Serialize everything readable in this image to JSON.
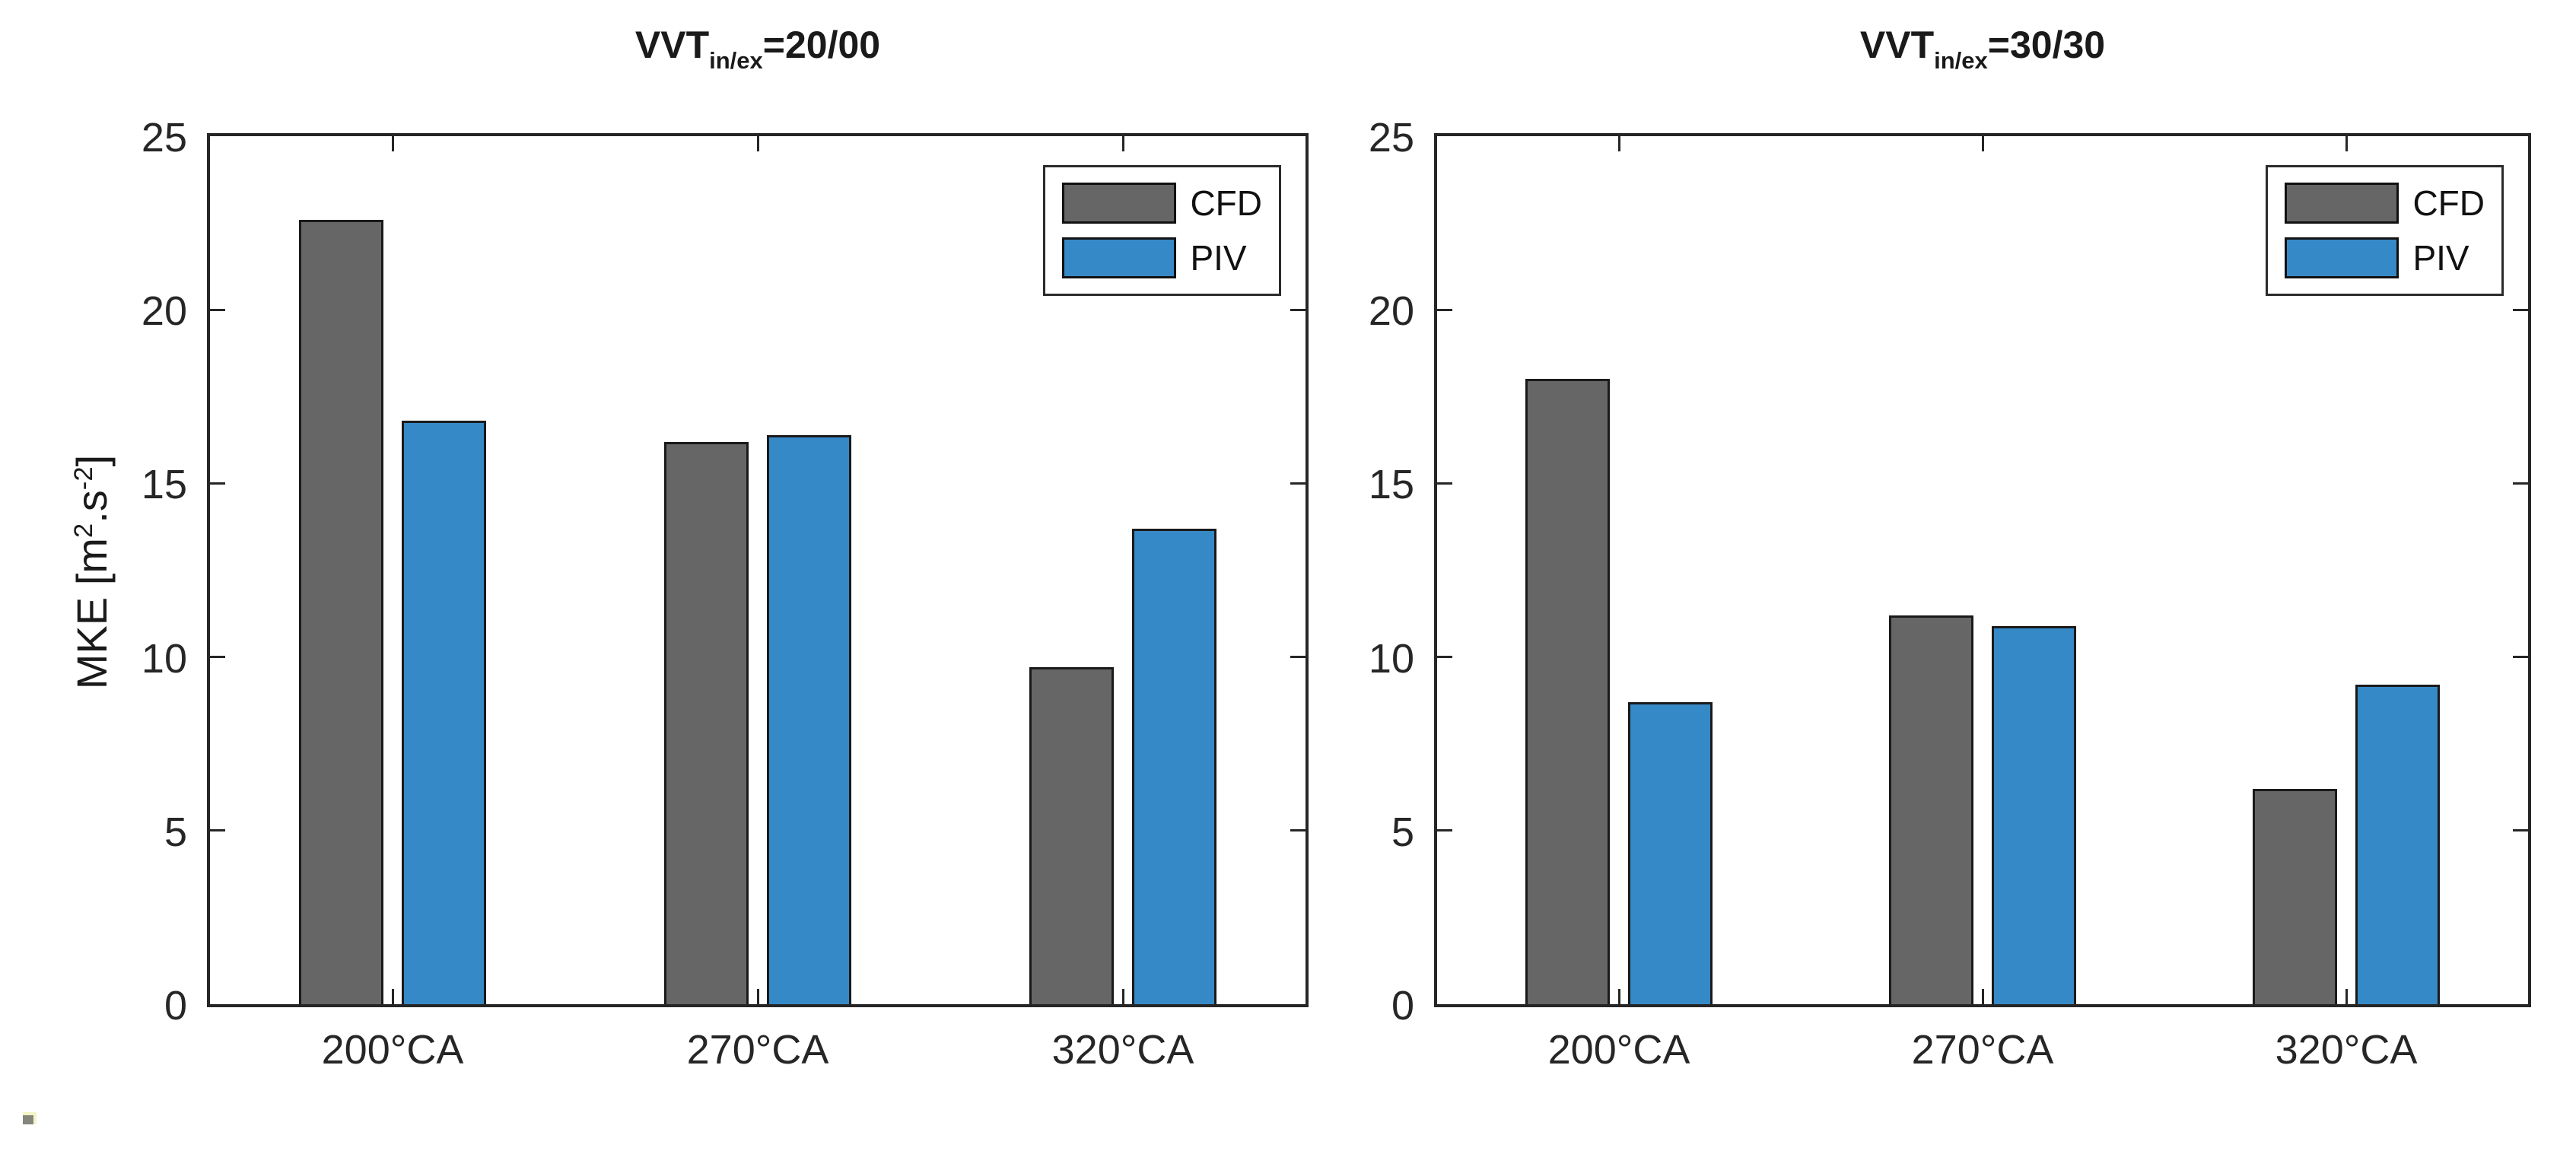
{
  "figure": {
    "background": "#ffffff",
    "y_axis_label_plain": "MKE [m2.s-2]",
    "ylabel_parts": {
      "pre": "MKE [m",
      "sup1": "2",
      "mid": ".s",
      "sup2": "-2",
      "post": "]"
    }
  },
  "colors": {
    "cfd_fill": "#666666",
    "piv_fill": "#3589C6",
    "bar_edge": "#1a1a1a",
    "axis": "#262626",
    "text": "#262626"
  },
  "chart_data": [
    {
      "type": "bar",
      "title_prefix": "VVT",
      "title_sub": "in/ex",
      "title_suffix": "=20/00",
      "title_plain": "VVT_in/ex=20/00",
      "categories": [
        "200°CA",
        "270°CA",
        "320°CA"
      ],
      "series": [
        {
          "name": "CFD",
          "values": [
            22.6,
            16.2,
            9.7
          ]
        },
        {
          "name": "PIV",
          "values": [
            16.8,
            16.4,
            13.7
          ]
        }
      ],
      "xlabel": "",
      "ylabel": "MKE [m2.s-2]",
      "ylim": [
        0,
        25
      ],
      "yticks": [
        0,
        5,
        10,
        15,
        20,
        25
      ],
      "grid": false,
      "legend_position": "top-right"
    },
    {
      "type": "bar",
      "title_prefix": "VVT",
      "title_sub": "in/ex",
      "title_suffix": "=30/30",
      "title_plain": "VVT_in/ex=30/30",
      "categories": [
        "200°CA",
        "270°CA",
        "320°CA"
      ],
      "series": [
        {
          "name": "CFD",
          "values": [
            18.0,
            11.2,
            6.2
          ]
        },
        {
          "name": "PIV",
          "values": [
            8.7,
            10.9,
            9.2
          ]
        }
      ],
      "xlabel": "",
      "ylabel": "MKE [m2.s-2]",
      "ylim": [
        0,
        25
      ],
      "yticks": [
        0,
        5,
        10,
        15,
        20,
        25
      ],
      "grid": false,
      "legend_position": "top-right"
    }
  ]
}
